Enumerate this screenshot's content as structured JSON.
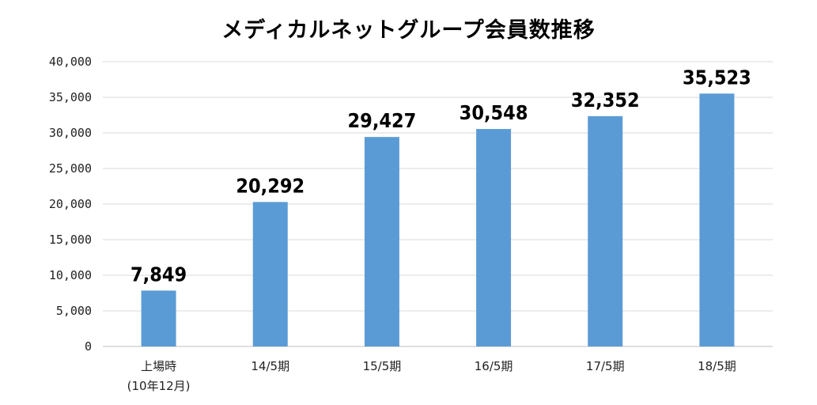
{
  "chart_data": {
    "type": "bar",
    "title": "メディカルネットグループ会員数推移",
    "categories": [
      [
        "上場時",
        "(10年12月)"
      ],
      [
        "14/5期"
      ],
      [
        "15/5期"
      ],
      [
        "16/5期"
      ],
      [
        "17/5期"
      ],
      [
        "18/5期"
      ]
    ],
    "values": [
      7849,
      20292,
      29427,
      30548,
      32352,
      35523
    ],
    "data_labels": [
      "7,849",
      "20,292",
      "29,427",
      "30,548",
      "32,352",
      "35,523"
    ],
    "ylim": [
      0,
      40000
    ],
    "yticks": [
      0,
      5000,
      10000,
      15000,
      20000,
      25000,
      30000,
      35000,
      40000
    ],
    "ytick_labels": [
      "0",
      "5,000",
      "10,000",
      "15,000",
      "20,000",
      "25,000",
      "30,000",
      "35,000",
      "40,000"
    ],
    "grid": true,
    "legend": "none",
    "bar_color": "#5b9bd5",
    "grid_color": "#d9d9d9"
  }
}
